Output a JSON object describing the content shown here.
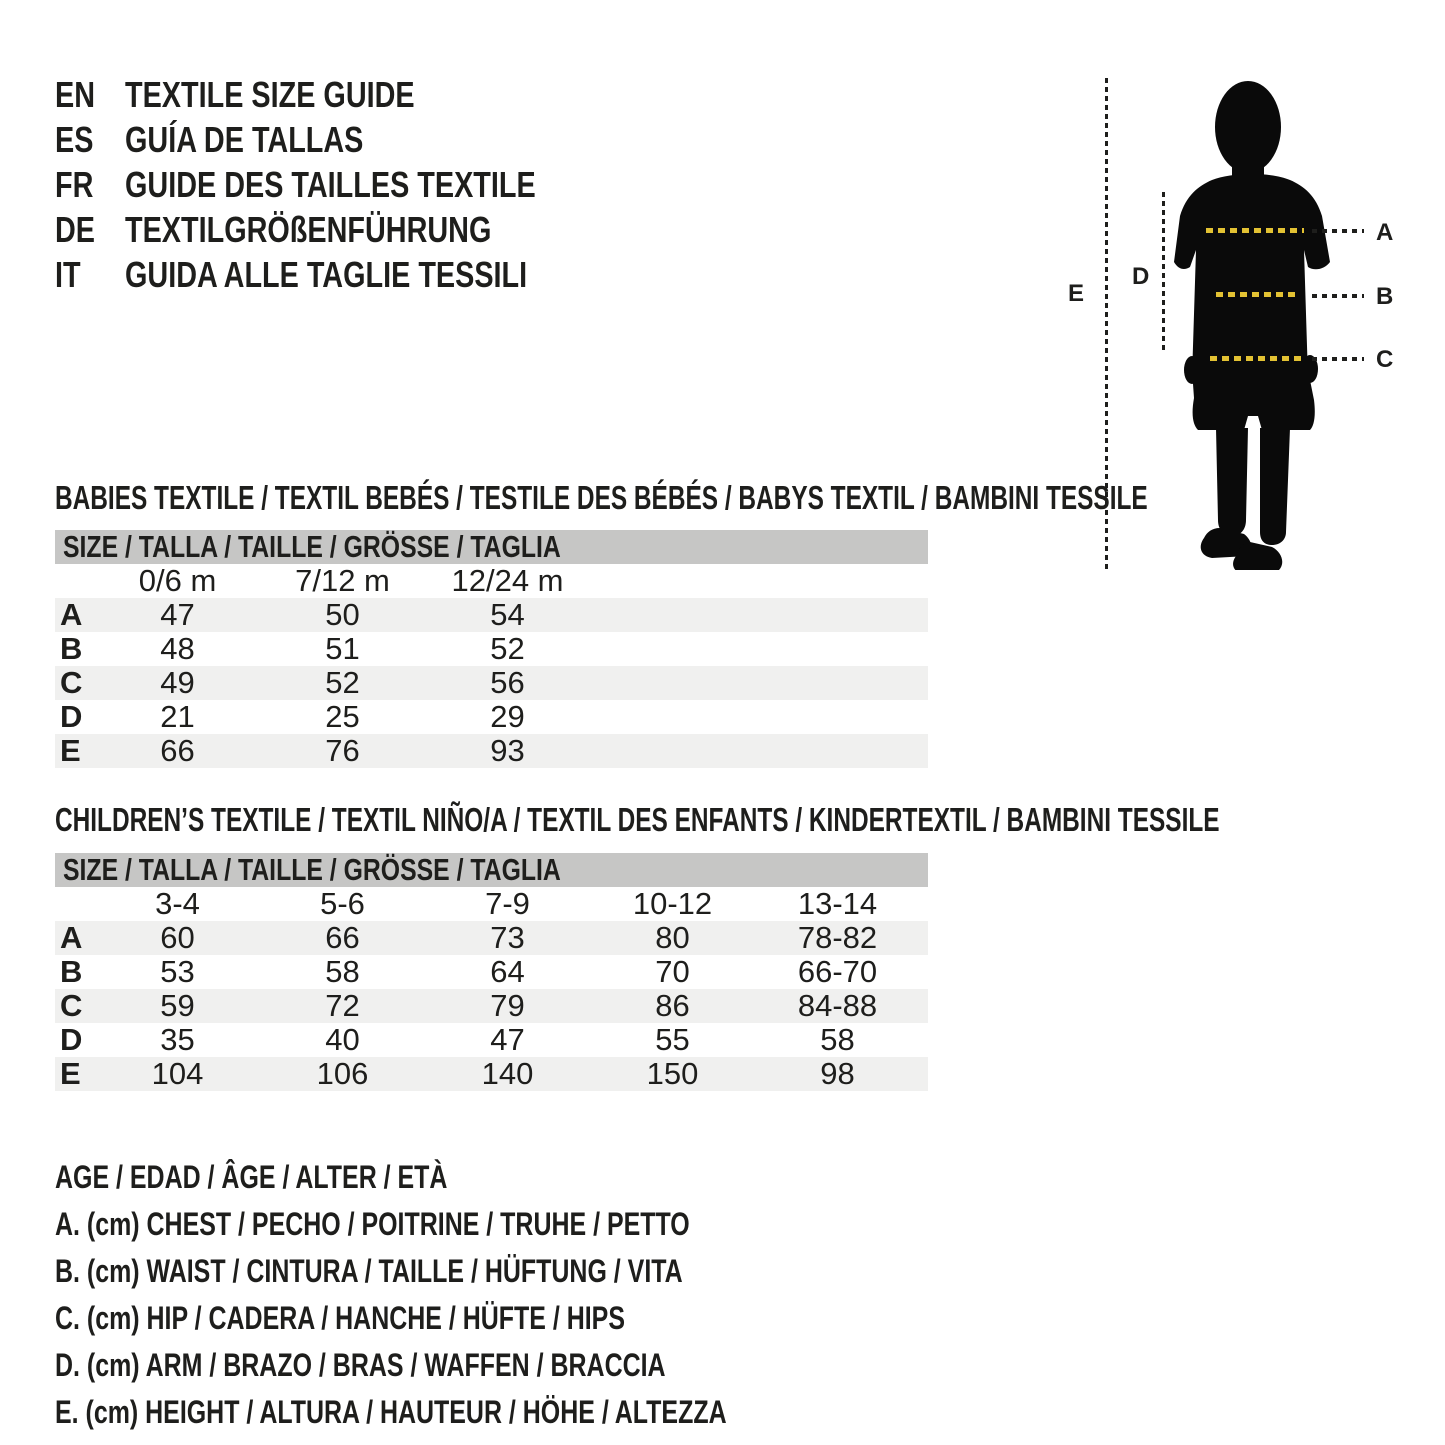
{
  "header": {
    "languages": [
      {
        "code": "EN",
        "title": "TEXTILE SIZE GUIDE"
      },
      {
        "code": "ES",
        "title": "GUÍA DE TALLAS"
      },
      {
        "code": "FR",
        "title": "GUIDE DES TAILLES TEXTILE"
      },
      {
        "code": "DE",
        "title": "TEXTILGRÖßENFÜHRUNG"
      },
      {
        "code": "IT",
        "title": "GUIDA ALLE TAGLIE TESSILI"
      }
    ]
  },
  "figure": {
    "side_labels": {
      "a": "A",
      "b": "B",
      "c": "C",
      "d": "D",
      "e": "E"
    },
    "colors": {
      "silhouette": "#0a0a0a",
      "measure_dash": "#e3c233",
      "leader_dash": "#1e1e1c"
    }
  },
  "babies": {
    "heading": "BABIES TEXTILE / TEXTIL BEBÉS / TESTILE DES BÉBÉS / BABYS TEXTIL / BAMBINI TESSILE",
    "size_header": "SIZE / TALLA / TAILLE / GRÖSSE / TAGLIA",
    "columns": [
      "0/6 m",
      "7/12 m",
      "12/24 m"
    ],
    "rows": [
      {
        "label": "A",
        "values": [
          "47",
          "50",
          "54"
        ]
      },
      {
        "label": "B",
        "values": [
          "48",
          "51",
          "52"
        ]
      },
      {
        "label": "C",
        "values": [
          "49",
          "52",
          "56"
        ]
      },
      {
        "label": "D",
        "values": [
          "21",
          "25",
          "29"
        ]
      },
      {
        "label": "E",
        "values": [
          "66",
          "76",
          "93"
        ]
      }
    ]
  },
  "children": {
    "heading": "CHILDREN’S TEXTILE / TEXTIL NIÑO/A / TEXTIL DES ENFANTS / KINDERTEXTIL / BAMBINI TESSILE",
    "size_header": "SIZE / TALLA / TAILLE / GRÖSSE / TAGLIA",
    "columns": [
      "3-4",
      "5-6",
      "7-9",
      "10-12",
      "13-14"
    ],
    "rows": [
      {
        "label": "A",
        "values": [
          "60",
          "66",
          "73",
          "80",
          "78-82"
        ]
      },
      {
        "label": "B",
        "values": [
          "53",
          "58",
          "64",
          "70",
          "66-70"
        ]
      },
      {
        "label": "C",
        "values": [
          "59",
          "72",
          "79",
          "86",
          "84-88"
        ]
      },
      {
        "label": "D",
        "values": [
          "35",
          "40",
          "47",
          "55",
          "58"
        ]
      },
      {
        "label": "E",
        "values": [
          "104",
          "106",
          "140",
          "150",
          "98"
        ]
      }
    ]
  },
  "legend": {
    "lines": [
      "AGE / EDAD / ÂGE / ALTER / ETÀ",
      "A. (cm) CHEST / PECHO / POITRINE / TRUHE / PETTO",
      "B. (cm) WAIST / CINTURA / TAILLE / HÜFTUNG / VITA",
      "C. (cm) HIP / CADERA / HANCHE / HÜFTE / HIPS",
      "D. (cm) ARM / BRAZO / BRAS / WAFFEN / BRACCIA",
      "E. (cm) HEIGHT / ALTURA / HAUTEUR / HÖHE / ALTEZZA"
    ]
  },
  "colors": {
    "header_bar": "#c6c6c5",
    "alt_row": "#f0f0ef",
    "text": "#1e1e1c"
  }
}
